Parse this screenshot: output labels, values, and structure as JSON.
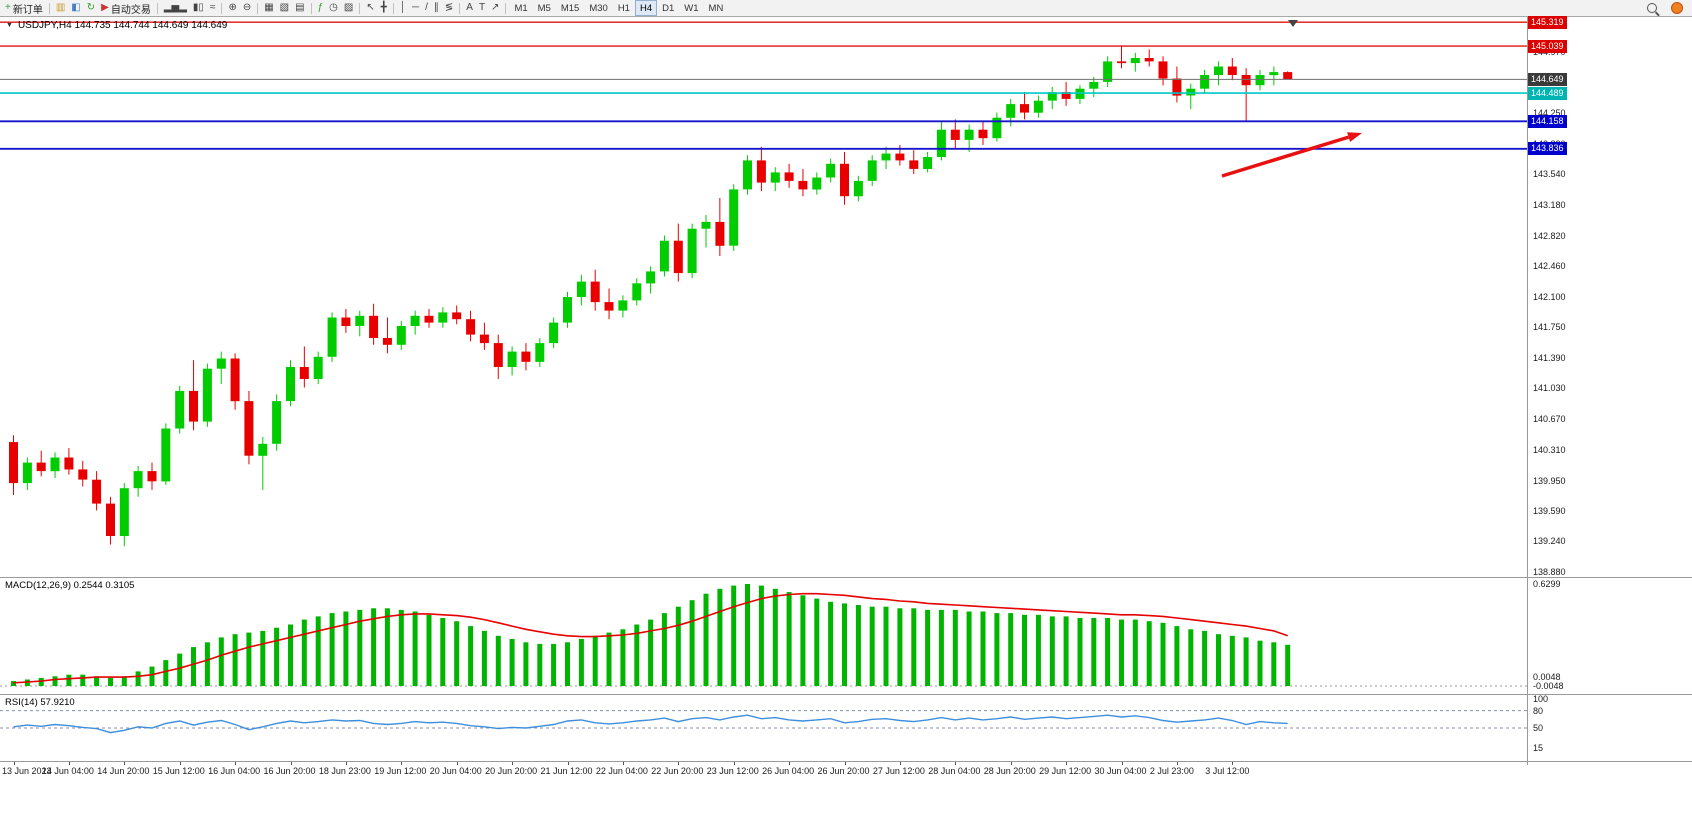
{
  "toolbar": {
    "items": [
      {
        "t": "btn",
        "name": "new-order-button",
        "glyph": "+",
        "gc": "#2e9e2e",
        "label": "新订单"
      },
      {
        "t": "sep"
      },
      {
        "t": "icon",
        "name": "market-watch-icon",
        "glyph": "▥",
        "gc": "#c79a2d"
      },
      {
        "t": "icon",
        "name": "data-window-icon",
        "glyph": "◧",
        "gc": "#4a7ec8"
      },
      {
        "t": "icon",
        "name": "refresh-icon",
        "glyph": "↻",
        "gc": "#2e9e2e"
      },
      {
        "t": "btn",
        "name": "autotrading-button",
        "glyph": "▶",
        "gc": "#cc3333",
        "label": "自动交易"
      },
      {
        "t": "sep"
      },
      {
        "t": "icon",
        "name": "bar-chart-icon",
        "glyph": "▂▅▂"
      },
      {
        "t": "icon",
        "name": "candlestick-chart-icon",
        "glyph": "▮▯"
      },
      {
        "t": "icon",
        "name": "line-chart-icon",
        "glyph": "≈"
      },
      {
        "t": "sep"
      },
      {
        "t": "icon",
        "name": "zoom-in-icon",
        "glyph": "⊕"
      },
      {
        "t": "icon",
        "name": "zoom-out-icon",
        "glyph": "⊖"
      },
      {
        "t": "sep"
      },
      {
        "t": "icon",
        "name": "tile-windows-icon",
        "glyph": "▦"
      },
      {
        "t": "icon",
        "name": "cascade-windows-icon",
        "glyph": "▧"
      },
      {
        "t": "icon",
        "name": "arrange-windows-icon",
        "glyph": "▤"
      },
      {
        "t": "sep"
      },
      {
        "t": "icon",
        "name": "indicators-icon",
        "glyph": "ƒ",
        "gc": "#2e9e2e"
      },
      {
        "t": "icon",
        "name": "periods-icon",
        "glyph": "◷"
      },
      {
        "t": "icon",
        "name": "templates-icon",
        "glyph": "▨"
      },
      {
        "t": "sep"
      },
      {
        "t": "icon",
        "name": "cursor-icon",
        "glyph": "↖"
      },
      {
        "t": "icon",
        "name": "crosshair-icon",
        "glyph": "╋"
      },
      {
        "t": "sep"
      },
      {
        "t": "icon",
        "name": "vertical-line-icon",
        "glyph": "│"
      },
      {
        "t": "icon",
        "name": "horizontal-line-icon",
        "glyph": "─"
      },
      {
        "t": "icon",
        "name": "trendline-icon",
        "glyph": "/"
      },
      {
        "t": "icon",
        "name": "equidistant-channel-icon",
        "glyph": "∥"
      },
      {
        "t": "icon",
        "name": "fibonacci-icon",
        "glyph": "≶"
      },
      {
        "t": "sep"
      },
      {
        "t": "icon",
        "name": "text-icon",
        "glyph": "A"
      },
      {
        "t": "icon",
        "name": "text-label-icon",
        "glyph": "T"
      },
      {
        "t": "icon",
        "name": "arrows-tool-icon",
        "glyph": "↗"
      },
      {
        "t": "sep"
      },
      {
        "t": "tfgroup"
      },
      {
        "t": "spacer"
      },
      {
        "t": "icon",
        "name": "search-icon",
        "css": "glass"
      },
      {
        "t": "icon",
        "name": "notification-badge",
        "css": "dot"
      }
    ],
    "timeframes": [
      "M1",
      "M5",
      "M15",
      "M30",
      "H1",
      "H4",
      "D1",
      "W1",
      "MN"
    ],
    "active_timeframe": "H4"
  },
  "chart": {
    "header": "USDJPY,H4  144.735 144.744 144.649 144.649",
    "colors": {
      "bull": "#00CC00",
      "bear": "#E80000",
      "macd_bar": "#00B400",
      "macd_signal": "#E60000",
      "rsi_line": "#3E8EDE",
      "indicator_level": "#8890A8",
      "axis_text": "#1a1a1a"
    },
    "levels": [
      {
        "label": "145.319",
        "price": 145.319,
        "color": "#E01212",
        "width": 1.4,
        "tag": "#DD0000"
      },
      {
        "label": "145.039",
        "price": 145.039,
        "color": "#E01212",
        "width": 1.4,
        "tag": "#DD0000"
      },
      {
        "label": "144.649",
        "price": 144.649,
        "color": "#6F6F6F",
        "width": 1,
        "tag": "#3A3A3A",
        "current": true
      },
      {
        "label": "144.489",
        "price": 144.489,
        "color": "#00C8C8",
        "width": 1.6,
        "tag": "#00B4B4"
      },
      {
        "label": "144.158",
        "price": 144.158,
        "color": "#1515CC",
        "width": 1.8,
        "tag": "#0000CC"
      },
      {
        "label": "143.836",
        "price": 143.836,
        "color": "#1515CC",
        "width": 1.8,
        "tag": "#0000CC"
      }
    ],
    "axis_prices": [
      "144.970",
      "144.610",
      "144.250",
      "143.890",
      "143.540",
      "143.180",
      "142.820",
      "142.460",
      "142.100",
      "141.750",
      "141.390",
      "141.030",
      "140.670",
      "140.310",
      "139.950",
      "139.590",
      "139.240",
      "138.880"
    ],
    "annotations": [
      {
        "type": "arrow",
        "from": [
          1222,
          159
        ],
        "to": [
          1362,
          116
        ],
        "color": "#E81010"
      }
    ]
  },
  "macd": {
    "label": "MACD(12,26,9) 0.2544 0.3105",
    "scale_top": "0.6299",
    "scale_near_zero": [
      "0.0048",
      "-0.0048"
    ]
  },
  "rsi": {
    "label": "RSI(14) 57.9210",
    "scale_labels": [
      "100",
      "80",
      "50",
      "15"
    ],
    "levels": [
      80,
      50
    ]
  },
  "chart_data": {
    "type": "candlestick",
    "symbol": "USDJPY",
    "timeframe": "H4",
    "ylim": [
      138.82,
      145.38
    ],
    "ohlc": [
      [
        140.4,
        140.48,
        139.78,
        139.92
      ],
      [
        139.92,
        140.22,
        139.84,
        140.16
      ],
      [
        140.16,
        140.3,
        140.0,
        140.06
      ],
      [
        140.06,
        140.28,
        139.98,
        140.22
      ],
      [
        140.22,
        140.33,
        140.02,
        140.08
      ],
      [
        140.08,
        140.18,
        139.88,
        139.96
      ],
      [
        139.96,
        140.06,
        139.6,
        139.68
      ],
      [
        139.68,
        139.76,
        139.2,
        139.3
      ],
      [
        139.3,
        139.92,
        139.18,
        139.86
      ],
      [
        139.86,
        140.12,
        139.76,
        140.06
      ],
      [
        140.06,
        140.16,
        139.84,
        139.94
      ],
      [
        139.94,
        140.62,
        139.9,
        140.56
      ],
      [
        140.56,
        141.06,
        140.5,
        141.0
      ],
      [
        141.0,
        141.36,
        140.54,
        140.64
      ],
      [
        140.64,
        141.32,
        140.58,
        141.26
      ],
      [
        141.26,
        141.46,
        141.08,
        141.38
      ],
      [
        141.38,
        141.44,
        140.78,
        140.88
      ],
      [
        140.88,
        141.0,
        140.14,
        140.24
      ],
      [
        140.24,
        140.46,
        139.84,
        140.38
      ],
      [
        140.38,
        140.96,
        140.3,
        140.88
      ],
      [
        140.88,
        141.36,
        140.82,
        141.28
      ],
      [
        141.28,
        141.52,
        141.04,
        141.14
      ],
      [
        141.14,
        141.46,
        141.08,
        141.4
      ],
      [
        141.4,
        141.92,
        141.34,
        141.86
      ],
      [
        141.86,
        141.96,
        141.68,
        141.76
      ],
      [
        141.76,
        141.94,
        141.64,
        141.88
      ],
      [
        141.88,
        142.02,
        141.54,
        141.62
      ],
      [
        141.62,
        141.86,
        141.44,
        141.54
      ],
      [
        141.54,
        141.82,
        141.48,
        141.76
      ],
      [
        141.76,
        141.94,
        141.66,
        141.88
      ],
      [
        141.88,
        141.96,
        141.74,
        141.8
      ],
      [
        141.8,
        141.98,
        141.74,
        141.92
      ],
      [
        141.92,
        142.0,
        141.78,
        141.84
      ],
      [
        141.84,
        141.94,
        141.58,
        141.66
      ],
      [
        141.66,
        141.8,
        141.48,
        141.56
      ],
      [
        141.56,
        141.66,
        141.14,
        141.28
      ],
      [
        141.28,
        141.52,
        141.18,
        141.46
      ],
      [
        141.46,
        141.56,
        141.24,
        141.34
      ],
      [
        141.34,
        141.62,
        141.28,
        141.56
      ],
      [
        141.56,
        141.86,
        141.5,
        141.8
      ],
      [
        141.8,
        142.16,
        141.74,
        142.1
      ],
      [
        142.1,
        142.36,
        142.0,
        142.28
      ],
      [
        142.28,
        142.42,
        141.94,
        142.04
      ],
      [
        142.04,
        142.2,
        141.84,
        141.94
      ],
      [
        141.94,
        142.12,
        141.86,
        142.06
      ],
      [
        142.06,
        142.32,
        142.0,
        142.26
      ],
      [
        142.26,
        142.46,
        142.14,
        142.4
      ],
      [
        142.4,
        142.82,
        142.34,
        142.76
      ],
      [
        142.76,
        142.96,
        142.28,
        142.38
      ],
      [
        142.38,
        142.96,
        142.32,
        142.9
      ],
      [
        142.9,
        143.06,
        142.68,
        142.98
      ],
      [
        142.98,
        143.26,
        142.58,
        142.7
      ],
      [
        142.7,
        143.42,
        142.64,
        143.36
      ],
      [
        143.36,
        143.76,
        143.3,
        143.7
      ],
      [
        143.7,
        143.86,
        143.34,
        143.44
      ],
      [
        143.44,
        143.62,
        143.34,
        143.56
      ],
      [
        143.56,
        143.66,
        143.38,
        143.46
      ],
      [
        143.46,
        143.6,
        143.28,
        143.36
      ],
      [
        143.36,
        143.56,
        143.3,
        143.5
      ],
      [
        143.5,
        143.72,
        143.44,
        143.66
      ],
      [
        143.66,
        143.8,
        143.18,
        143.28
      ],
      [
        143.28,
        143.52,
        143.22,
        143.46
      ],
      [
        143.46,
        143.76,
        143.4,
        143.7
      ],
      [
        143.7,
        143.86,
        143.6,
        143.78
      ],
      [
        143.78,
        143.88,
        143.64,
        143.7
      ],
      [
        143.7,
        143.82,
        143.54,
        143.6
      ],
      [
        143.6,
        143.8,
        143.56,
        143.74
      ],
      [
        143.74,
        144.16,
        143.7,
        144.06
      ],
      [
        144.06,
        144.18,
        143.84,
        143.94
      ],
      [
        143.94,
        144.12,
        143.8,
        144.06
      ],
      [
        144.06,
        144.16,
        143.88,
        143.96
      ],
      [
        143.96,
        144.26,
        143.92,
        144.2
      ],
      [
        144.2,
        144.42,
        144.1,
        144.36
      ],
      [
        144.36,
        144.5,
        144.18,
        144.26
      ],
      [
        144.26,
        144.46,
        144.2,
        144.4
      ],
      [
        144.4,
        144.56,
        144.3,
        144.5
      ],
      [
        144.5,
        144.62,
        144.34,
        144.42
      ],
      [
        144.42,
        144.58,
        144.36,
        144.54
      ],
      [
        144.54,
        144.68,
        144.44,
        144.62
      ],
      [
        144.62,
        144.92,
        144.56,
        144.86
      ],
      [
        144.86,
        145.05,
        144.78,
        144.84
      ],
      [
        144.84,
        144.96,
        144.74,
        144.9
      ],
      [
        144.9,
        145.0,
        144.8,
        144.86
      ],
      [
        144.86,
        144.92,
        144.58,
        144.66
      ],
      [
        144.66,
        144.8,
        144.38,
        144.46
      ],
      [
        144.46,
        144.6,
        144.3,
        144.54
      ],
      [
        144.54,
        144.76,
        144.48,
        144.7
      ],
      [
        144.7,
        144.86,
        144.58,
        144.8
      ],
      [
        144.8,
        144.9,
        144.64,
        144.7
      ],
      [
        144.7,
        144.78,
        144.16,
        144.58
      ],
      [
        144.58,
        144.76,
        144.52,
        144.7
      ],
      [
        144.7,
        144.8,
        144.58,
        144.735
      ],
      [
        144.735,
        144.744,
        144.649,
        144.649
      ]
    ],
    "x_labels": [
      "13 Jun 2023",
      "14 Jun 04:00",
      "14 Jun 20:00",
      "15 Jun 12:00",
      "16 Jun 04:00",
      "16 Jun 20:00",
      "18 Jun 23:00",
      "19 Jun 12:00",
      "20 Jun 04:00",
      "20 Jun 20:00",
      "21 Jun 12:00",
      "22 Jun 04:00",
      "22 Jun 20:00",
      "23 Jun 12:00",
      "26 Jun 04:00",
      "26 Jun 20:00",
      "27 Jun 12:00",
      "28 Jun 04:00",
      "28 Jun 20:00",
      "29 Jun 12:00",
      "30 Jun 04:00",
      "2 Jul 23:00",
      "3 Jul 12:00"
    ],
    "x_label_indices": [
      0,
      4,
      8,
      12,
      16,
      20,
      24,
      28,
      32,
      36,
      40,
      44,
      48,
      52,
      56,
      60,
      64,
      68,
      72,
      76,
      80,
      84,
      88
    ],
    "macd": {
      "type": "bar",
      "ylim": [
        0,
        0.6299
      ],
      "histogram": [
        0.03,
        0.04,
        0.05,
        0.06,
        0.07,
        0.07,
        0.06,
        0.05,
        0.06,
        0.09,
        0.12,
        0.16,
        0.2,
        0.24,
        0.27,
        0.3,
        0.32,
        0.33,
        0.34,
        0.36,
        0.38,
        0.41,
        0.43,
        0.45,
        0.46,
        0.47,
        0.48,
        0.48,
        0.47,
        0.46,
        0.44,
        0.42,
        0.4,
        0.37,
        0.34,
        0.31,
        0.29,
        0.27,
        0.26,
        0.26,
        0.27,
        0.29,
        0.31,
        0.33,
        0.35,
        0.38,
        0.41,
        0.45,
        0.49,
        0.53,
        0.57,
        0.6,
        0.62,
        0.63,
        0.62,
        0.6,
        0.58,
        0.56,
        0.54,
        0.52,
        0.51,
        0.5,
        0.49,
        0.49,
        0.48,
        0.48,
        0.47,
        0.47,
        0.47,
        0.46,
        0.46,
        0.45,
        0.45,
        0.44,
        0.44,
        0.43,
        0.43,
        0.42,
        0.42,
        0.42,
        0.41,
        0.41,
        0.4,
        0.39,
        0.37,
        0.35,
        0.34,
        0.32,
        0.31,
        0.3,
        0.28,
        0.27,
        0.2544
      ],
      "signal": [
        0.02,
        0.025,
        0.03,
        0.04,
        0.045,
        0.05,
        0.055,
        0.055,
        0.055,
        0.06,
        0.07,
        0.09,
        0.11,
        0.135,
        0.16,
        0.19,
        0.215,
        0.24,
        0.26,
        0.28,
        0.3,
        0.32,
        0.34,
        0.36,
        0.38,
        0.4,
        0.415,
        0.43,
        0.44,
        0.445,
        0.445,
        0.44,
        0.435,
        0.425,
        0.41,
        0.39,
        0.37,
        0.35,
        0.335,
        0.32,
        0.31,
        0.305,
        0.305,
        0.31,
        0.315,
        0.325,
        0.34,
        0.355,
        0.375,
        0.4,
        0.43,
        0.46,
        0.49,
        0.515,
        0.54,
        0.555,
        0.565,
        0.57,
        0.57,
        0.565,
        0.56,
        0.55,
        0.54,
        0.535,
        0.525,
        0.52,
        0.51,
        0.505,
        0.5,
        0.495,
        0.49,
        0.485,
        0.48,
        0.475,
        0.47,
        0.465,
        0.46,
        0.455,
        0.45,
        0.445,
        0.44,
        0.44,
        0.435,
        0.43,
        0.42,
        0.41,
        0.4,
        0.39,
        0.38,
        0.37,
        0.355,
        0.34,
        0.3105
      ],
      "current": [
        0.2544,
        0.3105
      ]
    },
    "rsi": {
      "type": "line",
      "ylim": [
        0,
        100
      ],
      "values": [
        52,
        55,
        53,
        56,
        54,
        51,
        49,
        42,
        46,
        52,
        50,
        58,
        62,
        55,
        60,
        63,
        56,
        47,
        52,
        58,
        62,
        59,
        61,
        64,
        62,
        63,
        58,
        56,
        58,
        61,
        59,
        60,
        58,
        54,
        52,
        49,
        51,
        50,
        53,
        56,
        62,
        64,
        59,
        57,
        59,
        62,
        64,
        67,
        61,
        66,
        68,
        64,
        69,
        72,
        66,
        68,
        64,
        62,
        64,
        66,
        59,
        61,
        65,
        66,
        63,
        61,
        64,
        68,
        64,
        67,
        64,
        66,
        69,
        65,
        67,
        69,
        66,
        68,
        70,
        72,
        69,
        71,
        68,
        63,
        60,
        62,
        64,
        67,
        63,
        56,
        61,
        59,
        57.92
      ],
      "current": 57.921
    }
  }
}
